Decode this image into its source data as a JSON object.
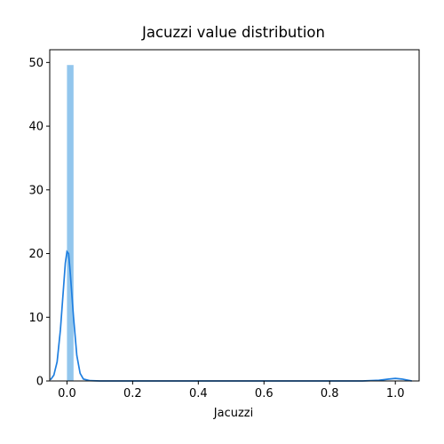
{
  "chart_data": {
    "type": "bar",
    "title": "Jacuzzi value distribution",
    "xlabel": "Jacuzzi",
    "ylabel": "",
    "xlim": [
      -0.0525,
      1.0725
    ],
    "ylim": [
      0,
      52
    ],
    "x_ticks": [
      "0.0",
      "0.2",
      "0.4",
      "0.6",
      "0.8",
      "1.0"
    ],
    "x_tick_values": [
      0.0,
      0.2,
      0.4,
      0.6,
      0.8,
      1.0
    ],
    "y_ticks": [
      "0",
      "10",
      "20",
      "30",
      "40",
      "50"
    ],
    "y_tick_values": [
      0,
      10,
      20,
      30,
      40,
      50
    ],
    "grid": false,
    "series": [
      {
        "type": "histogram",
        "color": "#92c6ed",
        "bins": [
          {
            "x0": 0.0,
            "x1": 0.02,
            "value": 49.6
          }
        ]
      },
      {
        "type": "kde_line",
        "color": "#1f7fe0",
        "x": [
          -0.05,
          -0.04,
          -0.03,
          -0.02,
          -0.01,
          -0.005,
          0.0,
          0.005,
          0.01,
          0.02,
          0.03,
          0.04,
          0.05,
          0.07,
          0.1,
          0.3,
          0.5,
          0.7,
          0.9,
          0.95,
          0.98,
          1.0,
          1.02,
          1.05
        ],
        "y": [
          0.2,
          0.9,
          3.0,
          8.0,
          15.0,
          18.5,
          20.3,
          20.0,
          17.0,
          10.0,
          4.0,
          1.2,
          0.3,
          0.05,
          0.0,
          0.0,
          0.0,
          0.0,
          0.0,
          0.1,
          0.3,
          0.4,
          0.3,
          0.0
        ]
      }
    ]
  }
}
